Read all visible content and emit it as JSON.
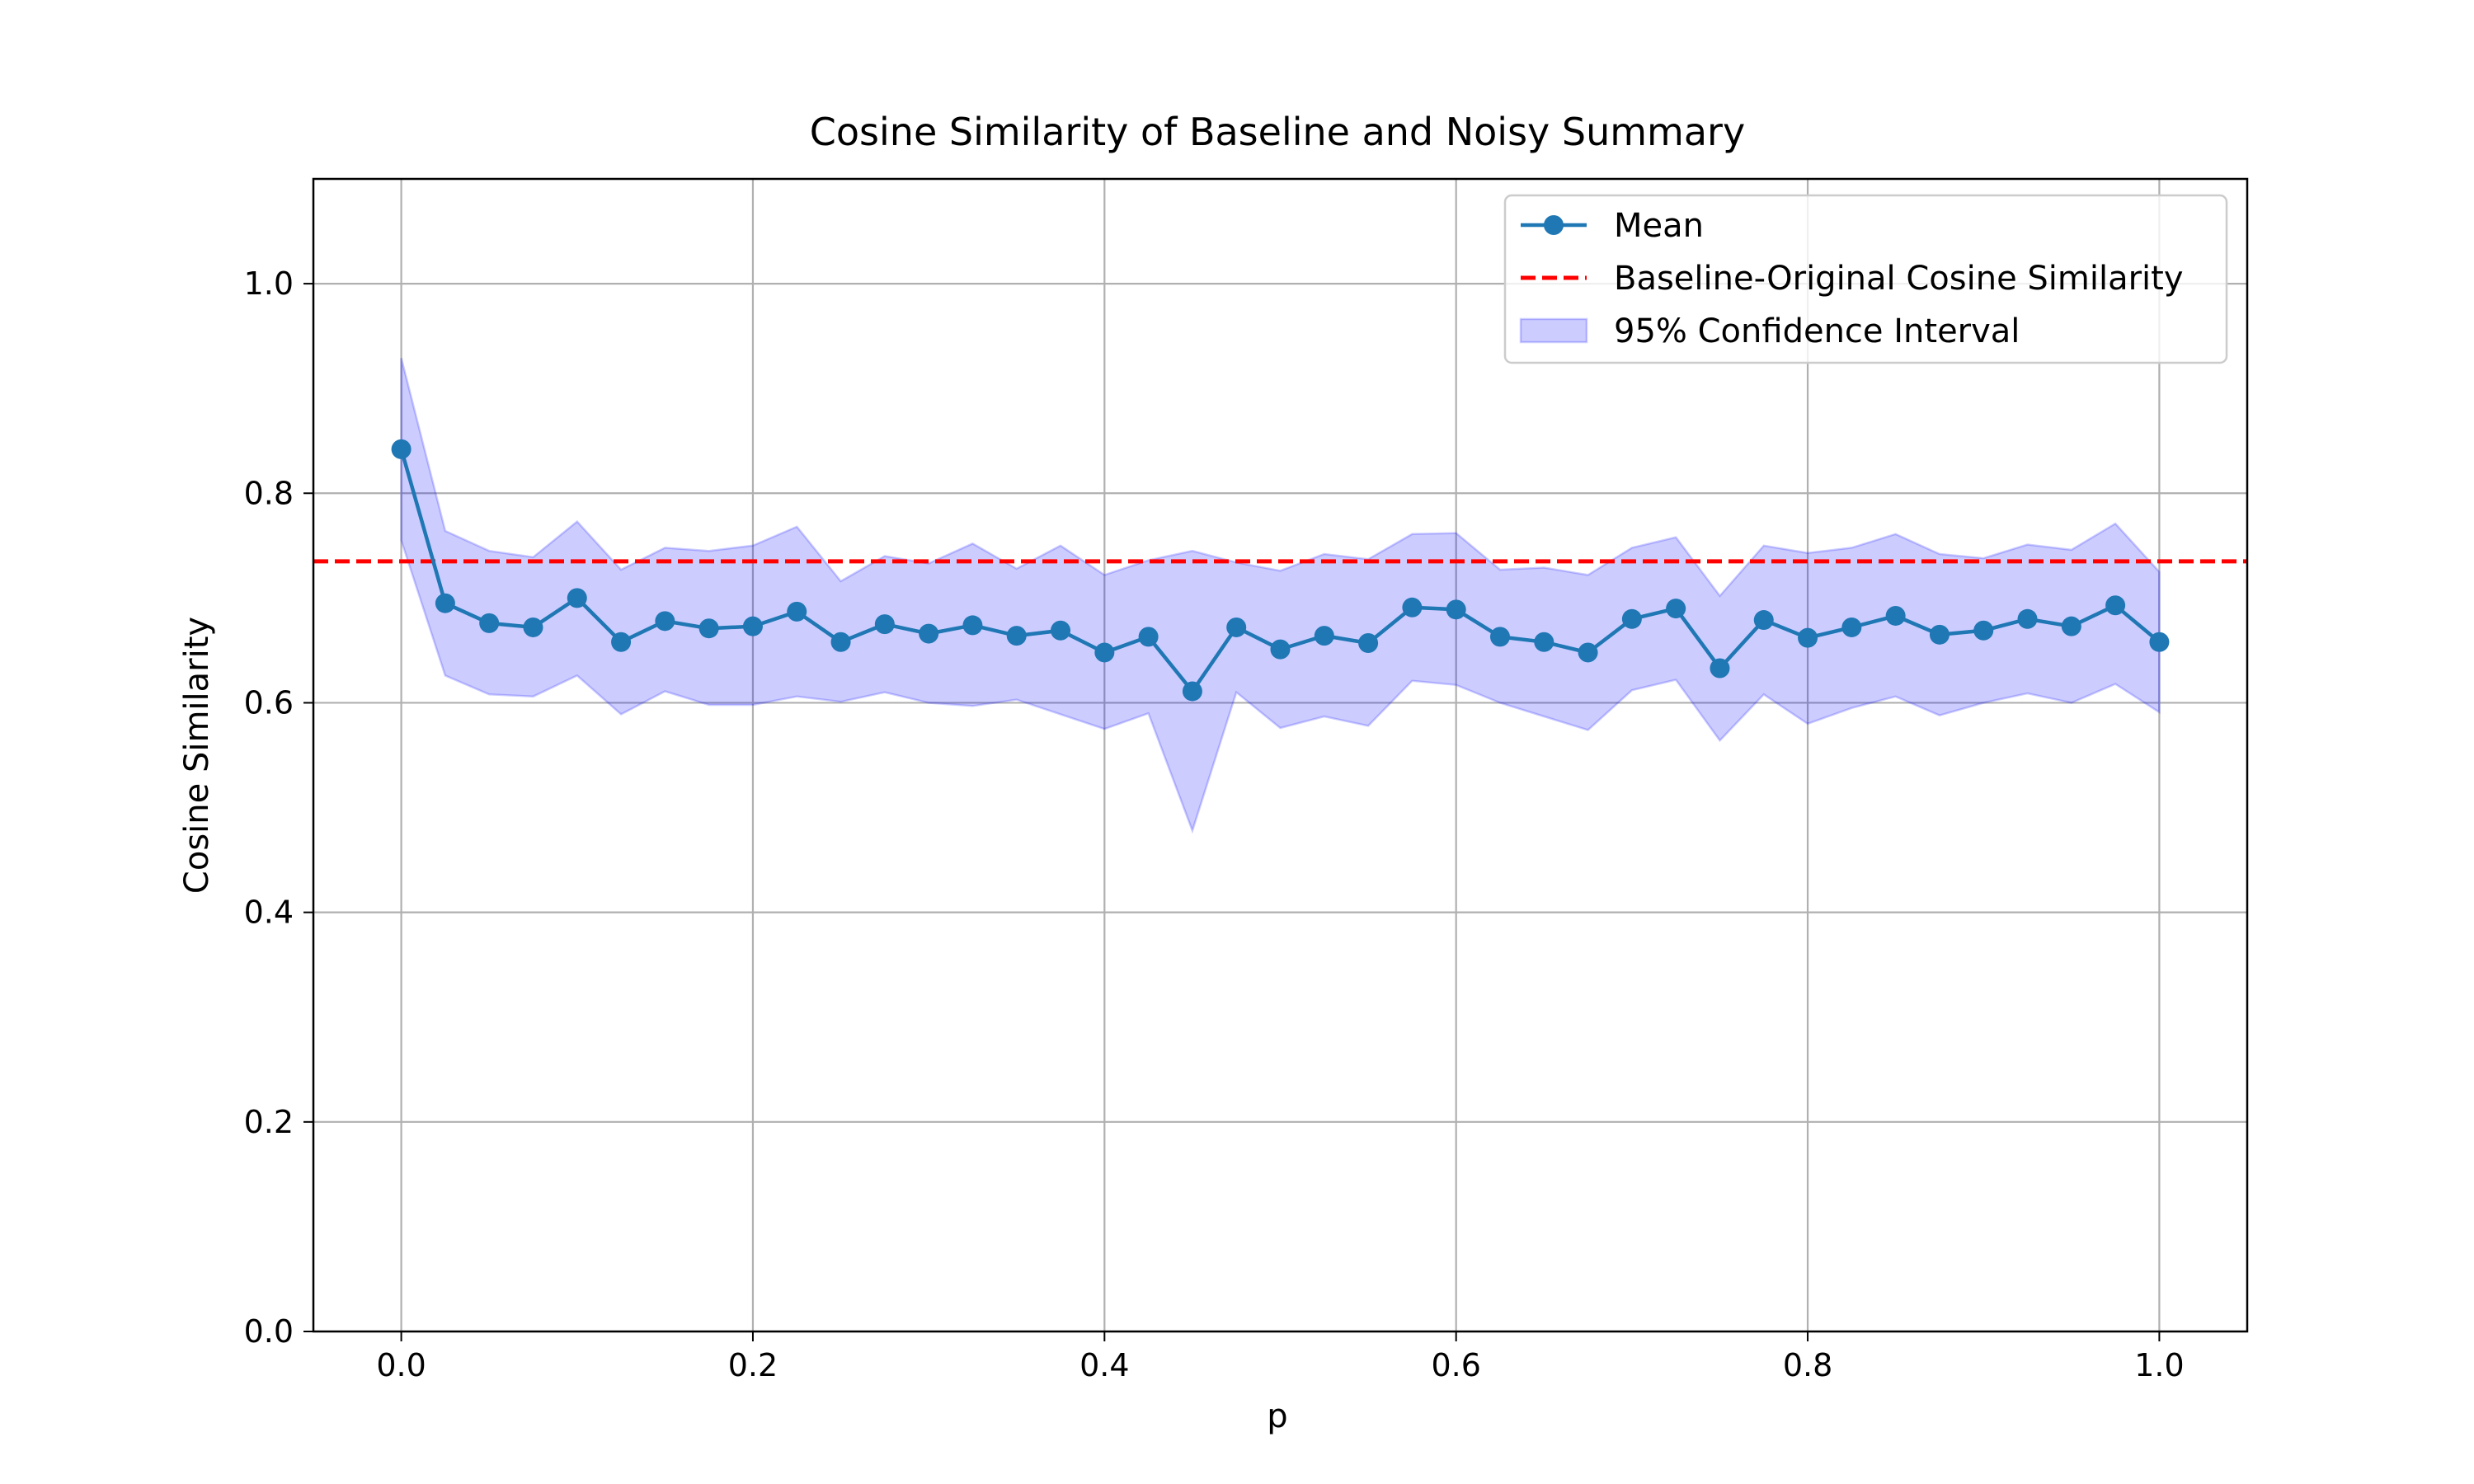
{
  "chart_data": {
    "type": "line",
    "title": "Cosine Similarity of Baseline and Noisy Summary",
    "xlabel": "p",
    "ylabel": "Cosine Similarity",
    "xlim": [
      -0.05,
      1.05
    ],
    "ylim": [
      0.0,
      1.1
    ],
    "xticks": [
      "0.0",
      "0.2",
      "0.4",
      "0.6",
      "0.8",
      "1.0"
    ],
    "yticks": [
      "0.0",
      "0.2",
      "0.4",
      "0.6",
      "0.8",
      "1.0"
    ],
    "grid": true,
    "legend_position": "top-right",
    "x": [
      0.0,
      0.025,
      0.05,
      0.075,
      0.1,
      0.125,
      0.15,
      0.175,
      0.2,
      0.225,
      0.25,
      0.275,
      0.3,
      0.325,
      0.35,
      0.375,
      0.4,
      0.425,
      0.45,
      0.475,
      0.5,
      0.525,
      0.55,
      0.575,
      0.6,
      0.625,
      0.65,
      0.675,
      0.7,
      0.725,
      0.75,
      0.775,
      0.8,
      0.825,
      0.85,
      0.875,
      0.9,
      0.925,
      0.95,
      0.975,
      1.0
    ],
    "series": [
      {
        "name": "Mean",
        "style": "line-marker",
        "color": "#1f77b4",
        "values": [
          0.842,
          0.695,
          0.676,
          0.672,
          0.7,
          0.658,
          0.678,
          0.671,
          0.673,
          0.687,
          0.658,
          0.675,
          0.666,
          0.674,
          0.664,
          0.669,
          0.648,
          0.663,
          0.611,
          0.672,
          0.651,
          0.664,
          0.657,
          0.691,
          0.689,
          0.663,
          0.658,
          0.648,
          0.68,
          0.69,
          0.633,
          0.679,
          0.662,
          0.672,
          0.683,
          0.665,
          0.669,
          0.68,
          0.673,
          0.693,
          0.658
        ]
      },
      {
        "name": "95% Confidence Interval",
        "style": "band",
        "color": "#0000ff",
        "lower": [
          0.755,
          0.626,
          0.608,
          0.606,
          0.626,
          0.589,
          0.611,
          0.598,
          0.598,
          0.606,
          0.601,
          0.61,
          0.6,
          0.597,
          0.603,
          0.589,
          0.575,
          0.59,
          0.478,
          0.61,
          0.576,
          0.587,
          0.578,
          0.621,
          0.617,
          0.6,
          0.587,
          0.574,
          0.612,
          0.622,
          0.564,
          0.608,
          0.58,
          0.595,
          0.606,
          0.588,
          0.6,
          0.609,
          0.6,
          0.618,
          0.591
        ],
        "upper": [
          0.929,
          0.764,
          0.745,
          0.739,
          0.773,
          0.727,
          0.748,
          0.745,
          0.75,
          0.768,
          0.716,
          0.74,
          0.733,
          0.752,
          0.728,
          0.75,
          0.722,
          0.736,
          0.745,
          0.734,
          0.726,
          0.742,
          0.737,
          0.761,
          0.762,
          0.727,
          0.729,
          0.722,
          0.748,
          0.758,
          0.702,
          0.75,
          0.743,
          0.748,
          0.761,
          0.742,
          0.738,
          0.751,
          0.746,
          0.771,
          0.725
        ]
      },
      {
        "name": "Baseline-Original Cosine Similarity",
        "style": "hline-dashed",
        "color": "#ff0000",
        "value": 0.735
      }
    ]
  }
}
